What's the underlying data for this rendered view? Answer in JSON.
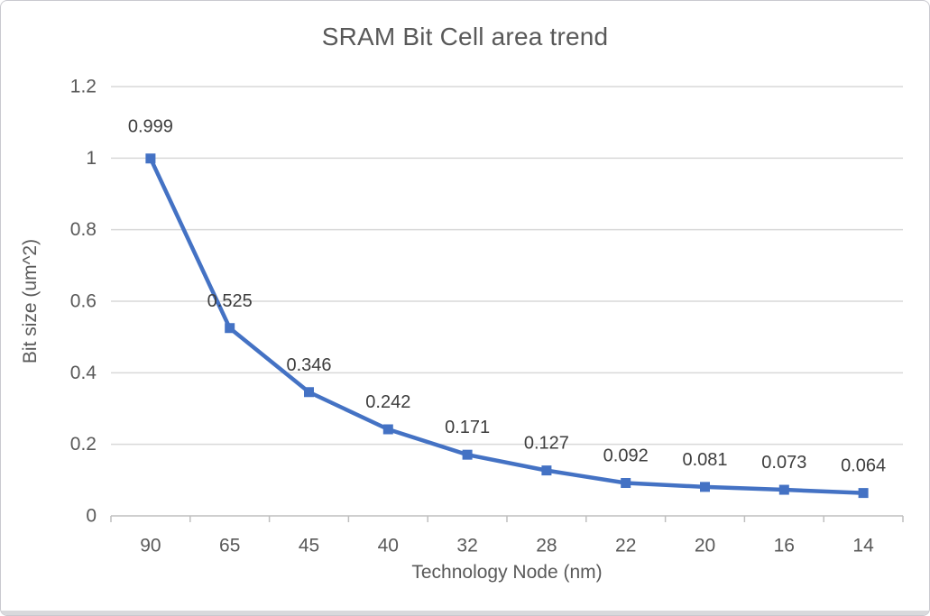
{
  "window": {
    "background": "#ffffff",
    "border_color": "#c9c9cf"
  },
  "chart_data": {
    "type": "line",
    "title": "SRAM Bit Cell area trend",
    "xlabel": "Technology Node (nm)",
    "ylabel": "Bit size (um^2)",
    "categories": [
      "90",
      "65",
      "45",
      "40",
      "32",
      "28",
      "22",
      "20",
      "16",
      "14"
    ],
    "series": [
      {
        "name": "Bit size (um^2)",
        "values": [
          0.999,
          0.525,
          0.346,
          0.242,
          0.171,
          0.127,
          0.092,
          0.081,
          0.073,
          0.064
        ]
      }
    ],
    "data_labels": [
      "0.999",
      "0.525",
      "0.346",
      "0.242",
      "0.171",
      "0.127",
      "0.092",
      "0.081",
      "0.073",
      "0.064"
    ],
    "ylim": [
      0,
      1.2
    ],
    "ytick_interval": 0.2,
    "yticks": [
      "0",
      "0.2",
      "0.4",
      "0.6",
      "0.8",
      "1",
      "1.2"
    ],
    "grid": "horizontal-major",
    "legend": "none",
    "marker": "square",
    "colors": {
      "series": "#4472C4",
      "gridline": "#D9D9D9",
      "axis_line": "#BFBFBF",
      "tick_text": "#595959",
      "data_label_text": "#3d3d3d",
      "title_text": "#595959"
    }
  }
}
